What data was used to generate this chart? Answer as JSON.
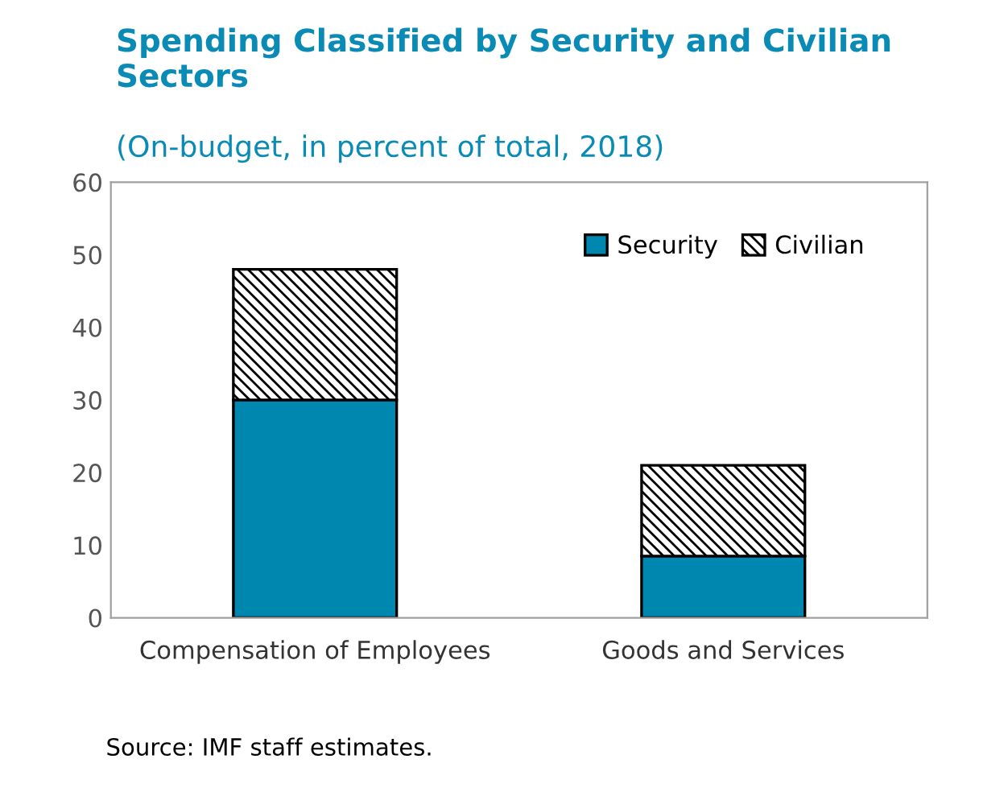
{
  "chart_data": {
    "type": "bar",
    "title": "Spending Classified by Security and Civilian Sectors",
    "subtitle": "(On-budget, in percent of total, 2018)",
    "categories": [
      "Compensation of Employees",
      "Goods and Services"
    ],
    "series": [
      {
        "name": "Security",
        "color": "#0087b0",
        "values": [
          30,
          8.5
        ]
      },
      {
        "name": "Civilian",
        "color": "#000000",
        "values": [
          18,
          12.5
        ]
      }
    ],
    "stacked": true,
    "ylim": [
      0,
      60
    ],
    "yticks": [
      0,
      10,
      20,
      30,
      40,
      50,
      60
    ],
    "grid": false,
    "legend": "top right",
    "annotations": [
      "Source: IMF staff estimates."
    ]
  }
}
